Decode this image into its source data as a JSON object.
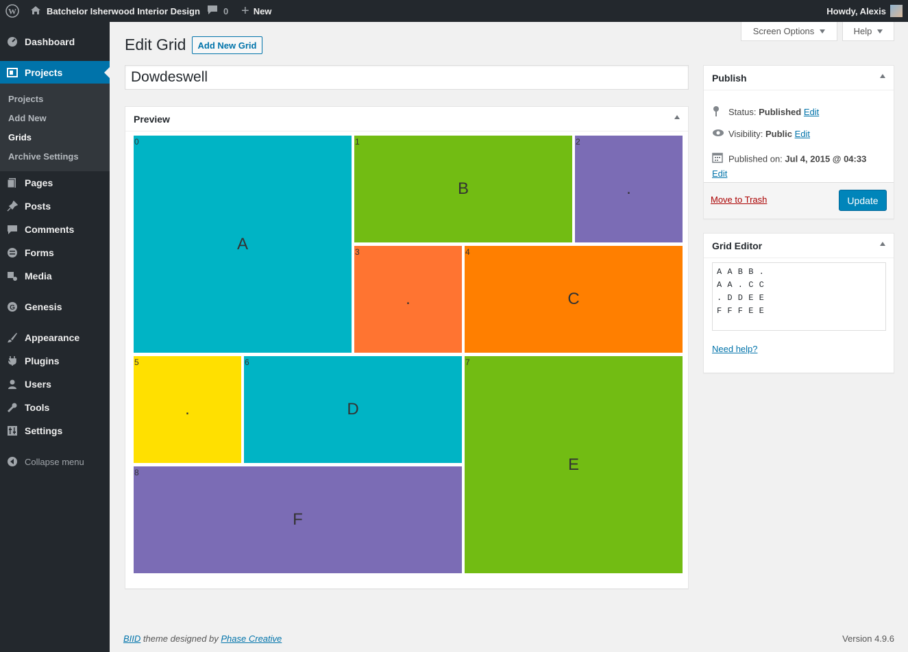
{
  "admin_bar": {
    "site_name": "Batchelor Isherwood Interior Design",
    "comments_count": "0",
    "new_label": "New",
    "howdy": "Howdy, Alexis"
  },
  "sidebar": {
    "items": [
      {
        "label": "Dashboard",
        "icon": "dashboard-icon"
      },
      {
        "label": "Projects",
        "icon": "projects-icon"
      },
      {
        "label": "Pages",
        "icon": "pages-icon"
      },
      {
        "label": "Posts",
        "icon": "posts-icon"
      },
      {
        "label": "Comments",
        "icon": "comments-icon"
      },
      {
        "label": "Forms",
        "icon": "forms-icon"
      },
      {
        "label": "Media",
        "icon": "media-icon"
      },
      {
        "label": "Genesis",
        "icon": "genesis-icon"
      },
      {
        "label": "Appearance",
        "icon": "appearance-icon"
      },
      {
        "label": "Plugins",
        "icon": "plugins-icon"
      },
      {
        "label": "Users",
        "icon": "users-icon"
      },
      {
        "label": "Tools",
        "icon": "tools-icon"
      },
      {
        "label": "Settings",
        "icon": "settings-icon"
      }
    ],
    "submenu": [
      "Projects",
      "Add New",
      "Grids",
      "Archive Settings"
    ],
    "collapse_label": "Collapse menu"
  },
  "header": {
    "screen_options": "Screen Options",
    "help": "Help",
    "page_title": "Edit Grid",
    "add_new": "Add New Grid"
  },
  "title_input": {
    "value": "Dowdeswell"
  },
  "preview": {
    "title": "Preview",
    "cells": [
      {
        "num": "0",
        "label": "A",
        "color": "#00b4c5"
      },
      {
        "num": "1",
        "label": "B",
        "color": "#72bc13"
      },
      {
        "num": "2",
        "label": ".",
        "color": "#7b6cb5"
      },
      {
        "num": "3",
        "label": ".",
        "color": "#ff7431"
      },
      {
        "num": "4",
        "label": "C",
        "color": "#ff7f00"
      },
      {
        "num": "5",
        "label": ".",
        "color": "#ffe000"
      },
      {
        "num": "6",
        "label": "D",
        "color": "#00b4c5"
      },
      {
        "num": "7",
        "label": "E",
        "color": "#72bc13"
      },
      {
        "num": "8",
        "label": "F",
        "color": "#7b6cb5"
      }
    ]
  },
  "publish": {
    "title": "Publish",
    "status_label": "Status:",
    "status_value": "Published",
    "visibility_label": "Visibility:",
    "visibility_value": "Public",
    "published_on_label": "Published on:",
    "published_on_value": "Jul 4, 2015 @ 04:33",
    "edit": "Edit",
    "trash": "Move to Trash",
    "update": "Update"
  },
  "grid_editor": {
    "title": "Grid Editor",
    "value": "A A B B .\nA A . C C\n. D D E E\nF F F E E",
    "help_link": "Need help?"
  },
  "footer": {
    "brand": "BIID",
    "theme_text": " theme designed by ",
    "designer": "Phase Creative",
    "version": "Version 4.9.6"
  },
  "colors": {
    "accent": "#0073aa",
    "sidebar_bg": "#23282d"
  }
}
